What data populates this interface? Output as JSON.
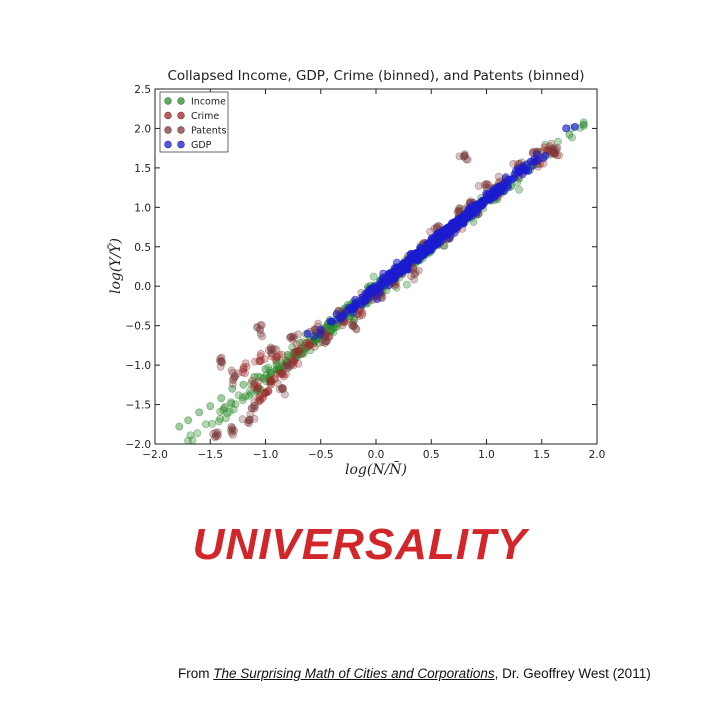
{
  "chart_data": {
    "type": "scatter",
    "title": "Collapsed Income, GDP, Crime (binned), and Patents (binned)",
    "xlabel": "log(N/N̄)",
    "ylabel": "log(Y/Ȳ)",
    "xlim": [
      -2.0,
      2.0
    ],
    "ylim": [
      -2.0,
      2.5
    ],
    "xticks": [
      "−2.0",
      "−1.5",
      "−1.0",
      "−0.5",
      "0.0",
      "0.5",
      "1.0",
      "1.5",
      "2.0"
    ],
    "yticks": [
      "−2.0",
      "−1.5",
      "−1.0",
      "−0.5",
      "0.0",
      "0.5",
      "1.0",
      "1.5",
      "2.0",
      "2.5"
    ],
    "grid": false,
    "legend_position": "top-left",
    "series": [
      {
        "name": "Income",
        "color": "#2e8b2e",
        "x_range": [
          -1.78,
          1.88
        ],
        "slope": 1.12,
        "intercept": -0.05,
        "spread": 0.09,
        "points": [
          [
            -1.78,
            -1.78
          ],
          [
            -1.7,
            -1.7
          ],
          [
            -1.6,
            -1.6
          ],
          [
            -1.5,
            -1.52
          ],
          [
            -1.4,
            -1.42
          ],
          [
            -1.3,
            -1.3
          ],
          [
            -1.2,
            -1.25
          ],
          [
            -1.1,
            -1.15
          ],
          [
            -1.0,
            -1.05
          ],
          [
            -0.9,
            -0.95
          ],
          [
            -0.8,
            -0.87
          ],
          [
            -0.6,
            -0.68
          ],
          [
            -0.4,
            -0.46
          ],
          [
            -0.2,
            -0.28
          ],
          [
            0.0,
            -0.05
          ],
          [
            0.2,
            0.18
          ],
          [
            0.4,
            0.42
          ],
          [
            0.6,
            0.7
          ],
          [
            0.8,
            0.88
          ],
          [
            1.0,
            1.08
          ],
          [
            1.2,
            1.3
          ],
          [
            1.4,
            1.52
          ],
          [
            1.6,
            1.72
          ],
          [
            1.75,
            1.92
          ],
          [
            1.88,
            2.05
          ]
        ]
      },
      {
        "name": "Crime",
        "color": "#9b2a2a",
        "points": [
          [
            -1.05,
            -1.45
          ],
          [
            -1.0,
            -1.35
          ],
          [
            -1.1,
            -1.25
          ],
          [
            -0.95,
            -1.2
          ],
          [
            -0.85,
            -1.1
          ],
          [
            -1.2,
            -1.05
          ],
          [
            -1.05,
            -0.95
          ],
          [
            -0.75,
            -0.95
          ],
          [
            -0.9,
            -0.9
          ],
          [
            -0.7,
            -0.82
          ],
          [
            -0.6,
            -0.75
          ],
          [
            -0.45,
            -0.62
          ],
          [
            -0.3,
            -0.45
          ],
          [
            -0.15,
            -0.3
          ],
          [
            0.0,
            -0.1
          ],
          [
            0.15,
            0.08
          ],
          [
            0.3,
            0.28
          ],
          [
            0.45,
            0.48
          ],
          [
            0.6,
            0.65
          ],
          [
            0.75,
            0.82
          ],
          [
            0.9,
            0.98
          ],
          [
            1.1,
            1.2
          ],
          [
            1.3,
            1.45
          ],
          [
            1.45,
            1.58
          ],
          [
            1.55,
            1.72
          ],
          [
            1.62,
            1.68
          ]
        ]
      },
      {
        "name": "Patents",
        "color": "#7a3a3a",
        "points": [
          [
            -1.45,
            -1.9
          ],
          [
            -1.3,
            -1.8
          ],
          [
            -1.15,
            -1.7
          ],
          [
            -1.1,
            -1.55
          ],
          [
            -1.28,
            -1.15
          ],
          [
            -1.4,
            -0.95
          ],
          [
            -1.05,
            -0.55
          ],
          [
            -0.95,
            -0.8
          ],
          [
            -0.85,
            -1.3
          ],
          [
            -0.8,
            -1.0
          ],
          [
            -0.75,
            -0.65
          ],
          [
            -0.55,
            -0.55
          ],
          [
            -0.45,
            -0.7
          ],
          [
            -0.3,
            -0.35
          ],
          [
            -0.2,
            -0.5
          ],
          [
            -0.1,
            -0.15
          ],
          [
            0.05,
            -0.1
          ],
          [
            0.2,
            0.2
          ],
          [
            0.35,
            0.15
          ],
          [
            0.45,
            0.55
          ],
          [
            0.55,
            0.75
          ],
          [
            0.65,
            0.6
          ],
          [
            0.75,
            0.95
          ],
          [
            0.85,
            1.05
          ],
          [
            1.0,
            1.25
          ],
          [
            1.15,
            1.3
          ],
          [
            1.3,
            1.55
          ],
          [
            0.8,
            1.65
          ],
          [
            1.45,
            1.7
          ],
          [
            1.6,
            1.75
          ]
        ]
      },
      {
        "name": "GDP",
        "color": "#1c1ccf",
        "x_range": [
          -0.65,
          1.82
        ],
        "slope": 1.13,
        "intercept": -0.03,
        "spread": 0.06,
        "points": [
          [
            -0.62,
            -0.6
          ],
          [
            -0.5,
            -0.55
          ],
          [
            -0.4,
            -0.45
          ],
          [
            -0.3,
            -0.38
          ],
          [
            -0.2,
            -0.25
          ],
          [
            -0.1,
            -0.15
          ],
          [
            0.0,
            -0.04
          ],
          [
            0.1,
            0.08
          ],
          [
            0.2,
            0.2
          ],
          [
            0.3,
            0.33
          ],
          [
            0.4,
            0.45
          ],
          [
            0.5,
            0.55
          ],
          [
            0.6,
            0.7
          ],
          [
            0.7,
            0.8
          ],
          [
            0.8,
            0.9
          ],
          [
            0.9,
            1.0
          ],
          [
            1.0,
            1.1
          ],
          [
            1.1,
            1.25
          ],
          [
            1.2,
            1.35
          ],
          [
            1.3,
            1.45
          ],
          [
            1.4,
            1.58
          ],
          [
            1.72,
            2.0
          ],
          [
            1.8,
            2.02
          ]
        ]
      }
    ]
  },
  "headline": "UNIVERSALITY",
  "credit": {
    "prefix": "From ",
    "book": "The Surprising Math of Cities and Corporations",
    "suffix": ", Dr. Geoffrey West (2011)"
  }
}
